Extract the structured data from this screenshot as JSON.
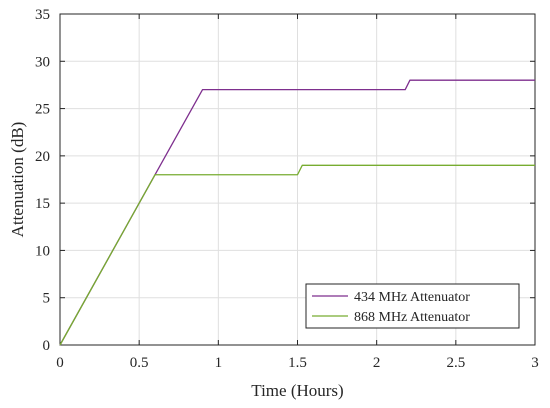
{
  "chart_data": {
    "type": "line",
    "xlabel": "Time (Hours)",
    "ylabel": "Attenuation (dB)",
    "xlim": [
      0,
      3
    ],
    "ylim": [
      0,
      35
    ],
    "xticks": [
      "0",
      "0.5",
      "1",
      "1.5",
      "2",
      "2.5",
      "3"
    ],
    "yticks": [
      "0",
      "5",
      "10",
      "15",
      "20",
      "25",
      "30",
      "35"
    ],
    "grid": true,
    "legend_position": "bottom-right",
    "series": [
      {
        "name": "434 MHz Attenuator",
        "color": "#7e2f8e",
        "x": [
          0,
          0.9,
          2.18,
          2.21,
          3
        ],
        "y": [
          0,
          27,
          27,
          28,
          28
        ]
      },
      {
        "name": "868 MHz Attenuator",
        "color": "#77ac30",
        "x": [
          0,
          0.6,
          1.5,
          1.53,
          3
        ],
        "y": [
          0,
          18,
          18,
          19,
          19
        ]
      }
    ]
  }
}
